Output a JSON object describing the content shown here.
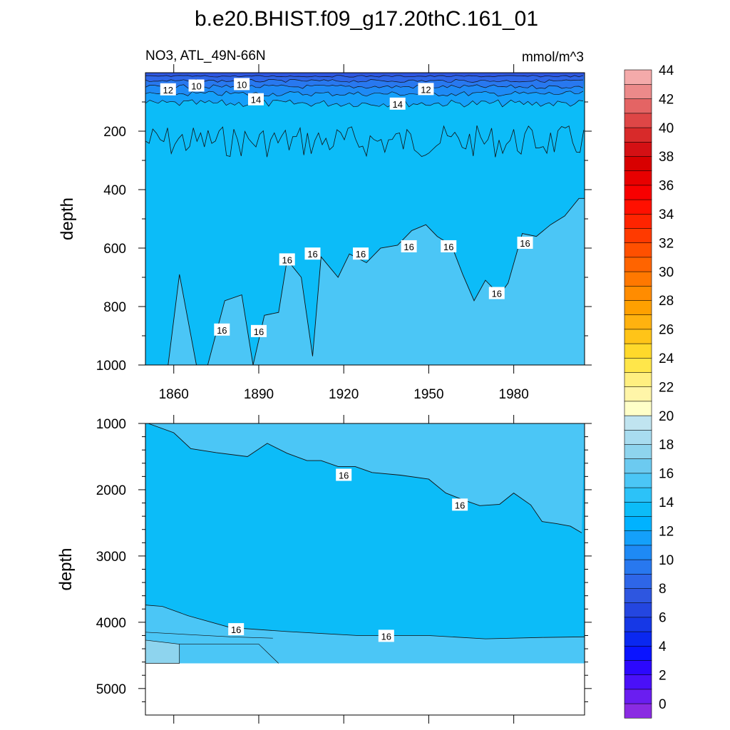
{
  "title": "b.e20.BHIST.f09_g17.20thC.161_01",
  "subtitle_left": "NO3, ATL_49N-66N",
  "subtitle_right": "mmol/m^3",
  "chart_data": [
    {
      "type": "contour",
      "panel": "upper",
      "variable": "NO3",
      "region": "ATL_49N-66N",
      "units": "mmol/m^3",
      "xlabel": "",
      "ylabel": "depth",
      "xlim": [
        1850,
        2005
      ],
      "ylim": [
        1000,
        0
      ],
      "x_ticks": [
        1860,
        1890,
        1920,
        1950,
        1980
      ],
      "x_tick_labels": [
        "1860",
        "1890",
        "1920",
        "1950",
        "1980"
      ],
      "y_ticks": [
        200,
        400,
        600,
        800,
        1000
      ],
      "y_tick_labels": [
        "200",
        "400",
        "600",
        "800",
        "1000"
      ],
      "contour_labels": [
        {
          "text": "12",
          "x": 1858,
          "y": 58
        },
        {
          "text": "10",
          "x": 1868,
          "y": 45
        },
        {
          "text": "10",
          "x": 1884,
          "y": 40
        },
        {
          "text": "14",
          "x": 1889,
          "y": 92
        },
        {
          "text": "14",
          "x": 1939,
          "y": 107
        },
        {
          "text": "12",
          "x": 1949,
          "y": 57
        },
        {
          "text": "16",
          "x": 1877,
          "y": 880
        },
        {
          "text": "16",
          "x": 1890,
          "y": 885
        },
        {
          "text": "16",
          "x": 1900,
          "y": 640
        },
        {
          "text": "16",
          "x": 1909,
          "y": 620
        },
        {
          "text": "16",
          "x": 1926,
          "y": 620
        },
        {
          "text": "16",
          "x": 1943,
          "y": 595
        },
        {
          "text": "16",
          "x": 1957,
          "y": 595
        },
        {
          "text": "16",
          "x": 1974,
          "y": 755
        },
        {
          "text": "16",
          "x": 1984,
          "y": 583
        }
      ],
      "contour_16_depth_by_year": {
        "x": [
          1850,
          1858,
          1862,
          1868,
          1872,
          1878,
          1884,
          1888,
          1892,
          1897,
          1900,
          1905,
          1909,
          1912,
          1918,
          1922,
          1928,
          1933,
          1939,
          1944,
          1949,
          1953,
          1958,
          1962,
          1966,
          1970,
          1975,
          1978,
          1983,
          1988,
          1993,
          1998,
          2003
        ],
        "y": [
          1000,
          1000,
          690,
          1000,
          1000,
          780,
          760,
          1000,
          830,
          820,
          640,
          700,
          970,
          630,
          700,
          620,
          650,
          600,
          590,
          540,
          520,
          560,
          590,
          690,
          780,
          710,
          760,
          720,
          550,
          560,
          520,
          490,
          430
        ]
      }
    },
    {
      "type": "contour",
      "panel": "lower",
      "variable": "NO3",
      "units": "mmol/m^3",
      "xlabel": "",
      "ylabel": "depth",
      "xlim": [
        1850,
        2005
      ],
      "ylim": [
        5400,
        1000
      ],
      "y_ticks": [
        1000,
        2000,
        3000,
        4000,
        5000
      ],
      "y_tick_labels": [
        "1000",
        "2000",
        "3000",
        "4000",
        "5000"
      ],
      "data_bottom_depth": 4620,
      "contour_labels": [
        {
          "text": "16",
          "x": 1920,
          "y": 1780
        },
        {
          "text": "16",
          "x": 1961,
          "y": 2230
        },
        {
          "text": "16",
          "x": 1882,
          "y": 4110
        },
        {
          "text": "16",
          "x": 1935,
          "y": 4210
        }
      ],
      "contour_16_depth_by_year": {
        "x": [
          1851,
          1860,
          1866,
          1875,
          1886,
          1893,
          1900,
          1907,
          1912,
          1918,
          1924,
          1930,
          1940,
          1950,
          1956,
          1962,
          1968,
          1975,
          1980,
          1986,
          1990,
          1995,
          2000,
          2004
        ],
        "y": [
          1000,
          1140,
          1380,
          1440,
          1500,
          1300,
          1450,
          1560,
          1560,
          1650,
          1650,
          1740,
          1780,
          1840,
          2050,
          2150,
          2240,
          2220,
          2050,
          2230,
          2480,
          2510,
          2550,
          2650
        ]
      },
      "deep_contour_16_depth_by_year": {
        "x": [
          1850,
          1856,
          1865,
          1880,
          1900,
          1925,
          1950,
          1970,
          1990,
          2005
        ],
        "y": [
          3740,
          3760,
          3900,
          4080,
          4140,
          4200,
          4200,
          4250,
          4230,
          4220
        ]
      }
    },
    {
      "type": "colorbar",
      "levels": [
        0,
        1,
        2,
        3,
        4,
        5,
        6,
        7,
        8,
        9,
        10,
        11,
        12,
        13,
        14,
        15,
        16,
        17,
        18,
        19,
        20,
        21,
        22,
        23,
        24,
        25,
        26,
        27,
        28,
        29,
        30,
        31,
        32,
        33,
        34,
        35,
        36,
        37,
        38,
        39,
        40,
        41,
        42,
        43,
        44,
        45
      ],
      "tick_labels": [
        "0",
        "2",
        "4",
        "6",
        "8",
        "10",
        "12",
        "14",
        "16",
        "18",
        "20",
        "22",
        "24",
        "26",
        "28",
        "30",
        "32",
        "34",
        "36",
        "38",
        "40",
        "42",
        "44"
      ],
      "colors": [
        "#8a2be2",
        "#6a1ef0",
        "#4a10f8",
        "#2c08fd",
        "#0a14ff",
        "#0a28f0",
        "#1638e6",
        "#2446e0",
        "#2e56e0",
        "#2e66e8",
        "#2878ef",
        "#1e8af5",
        "#14a0fa",
        "#00b2ff",
        "#0cbcf8",
        "#2cc2f8",
        "#4bc6f6",
        "#6ccaf0",
        "#8ed4ee",
        "#a8dcf0",
        "#c0e4f0",
        "#ffffc8",
        "#fff5a8",
        "#ffef80",
        "#ffe64a",
        "#ffd92b",
        "#ffc418",
        "#ffb20f",
        "#ffa000",
        "#ff8c00",
        "#ff7800",
        "#ff6400",
        "#ff5000",
        "#ff3a00",
        "#ff2400",
        "#ff1000",
        "#f80000",
        "#e80000",
        "#d80000",
        "#d41014",
        "#d82a2a",
        "#de4646",
        "#e46464",
        "#ec8a8a",
        "#f4aaaa"
      ]
    }
  ]
}
